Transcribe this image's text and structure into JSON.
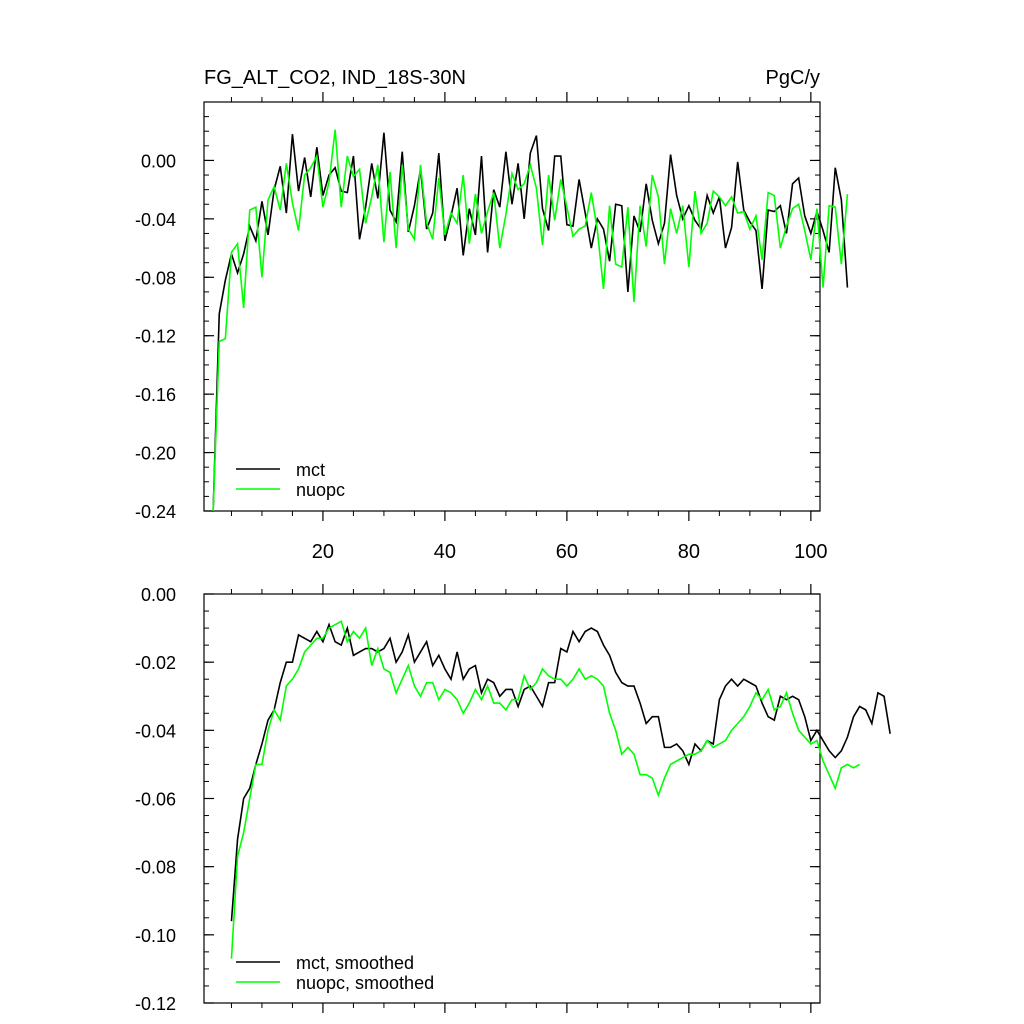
{
  "header": {
    "title_left": "FG_ALT_CO2, IND_18S-30N",
    "title_right": "PgC/y"
  },
  "chart_data": [
    {
      "type": "line",
      "xlim": [
        0.5,
        101.5
      ],
      "ylim": [
        -0.24,
        0.04
      ],
      "x_tick_labels": [
        "20",
        "40",
        "60",
        "80",
        "100"
      ],
      "x_tick_values": [
        20,
        40,
        60,
        80,
        100
      ],
      "y_tick_labels": [
        "0.00",
        "-0.04",
        "-0.08",
        "-0.12",
        "-0.16",
        "-0.20",
        "-0.24"
      ],
      "y_tick_values": [
        0.0,
        -0.04,
        -0.08,
        -0.12,
        -0.16,
        -0.2,
        -0.24
      ],
      "legend_position": "bottom-left",
      "series": [
        {
          "name": "mct",
          "color": "#000000",
          "x_start": 2,
          "values": [
            -0.24,
            -0.105,
            -0.082,
            -0.064,
            -0.077,
            -0.064,
            -0.045,
            -0.055,
            -0.028,
            -0.051,
            -0.02,
            -0.004,
            -0.036,
            0.018,
            -0.021,
            0.002,
            -0.025,
            0.009,
            -0.024,
            -0.01,
            -0.005,
            -0.021,
            -0.022,
            0.003,
            -0.054,
            -0.032,
            -0.002,
            -0.026,
            0.019,
            -0.034,
            -0.042,
            0.006,
            -0.049,
            -0.031,
            -0.006,
            -0.047,
            -0.036,
            0.005,
            -0.055,
            -0.038,
            -0.019,
            -0.065,
            -0.033,
            -0.051,
            0.003,
            -0.063,
            -0.02,
            -0.032,
            0.006,
            -0.03,
            -0.002,
            -0.04,
            0.005,
            0.017,
            -0.033,
            -0.048,
            0.003,
            0.003,
            -0.044,
            -0.045,
            -0.013,
            -0.036,
            -0.06,
            -0.04,
            -0.047,
            -0.069,
            -0.03,
            -0.031,
            -0.09,
            -0.038,
            -0.049,
            -0.016,
            -0.041,
            -0.057,
            -0.043,
            0.004,
            -0.024,
            -0.04,
            -0.031,
            -0.041,
            -0.047,
            -0.024,
            -0.036,
            -0.025,
            -0.06,
            -0.046,
            -0.001,
            -0.034,
            -0.042,
            -0.048,
            -0.088,
            -0.034,
            -0.035,
            -0.031,
            -0.05,
            -0.016,
            -0.012,
            -0.038,
            -0.05,
            -0.035,
            -0.048,
            -0.063,
            -0.005,
            -0.027,
            -0.087
          ]
        },
        {
          "name": "nuopc",
          "color": "#00ff00",
          "x_start": 2,
          "values": [
            -0.24,
            -0.124,
            -0.122,
            -0.063,
            -0.057,
            -0.101,
            -0.034,
            -0.032,
            -0.08,
            -0.027,
            -0.018,
            -0.034,
            -0.002,
            -0.029,
            -0.048,
            -0.01,
            -0.005,
            0.003,
            -0.032,
            -0.015,
            0.021,
            -0.032,
            0.003,
            -0.011,
            -0.006,
            -0.043,
            -0.025,
            -0.003,
            -0.056,
            -0.008,
            -0.06,
            -0.003,
            -0.047,
            -0.054,
            -0.003,
            -0.043,
            -0.054,
            -0.012,
            -0.051,
            -0.036,
            -0.043,
            -0.01,
            -0.057,
            -0.023,
            -0.05,
            -0.035,
            -0.022,
            -0.06,
            -0.037,
            -0.009,
            -0.02,
            -0.016,
            -0.003,
            -0.019,
            -0.058,
            -0.01,
            -0.041,
            -0.013,
            -0.032,
            -0.052,
            -0.047,
            -0.045,
            -0.022,
            -0.048,
            -0.088,
            -0.031,
            -0.071,
            -0.073,
            -0.032,
            -0.097,
            -0.031,
            -0.059,
            -0.01,
            -0.025,
            -0.071,
            -0.033,
            -0.05,
            -0.031,
            -0.073,
            -0.021,
            -0.05,
            -0.043,
            -0.021,
            -0.025,
            -0.031,
            -0.025,
            -0.036,
            -0.035,
            -0.047,
            -0.038,
            -0.068,
            -0.022,
            -0.024,
            -0.06,
            -0.045,
            -0.033,
            -0.03,
            -0.048,
            -0.068,
            -0.033,
            -0.087,
            -0.031,
            -0.032,
            -0.071,
            -0.023
          ]
        }
      ]
    },
    {
      "type": "line",
      "xlim": [
        0.5,
        101.5
      ],
      "ylim": [
        -0.12,
        0.0
      ],
      "x_tick_values": [
        20,
        40,
        60,
        80,
        100
      ],
      "y_tick_labels": [
        "0.00",
        "-0.02",
        "-0.04",
        "-0.06",
        "-0.08",
        "-0.10",
        "-0.12"
      ],
      "y_tick_values": [
        0.0,
        -0.02,
        -0.04,
        -0.06,
        -0.08,
        -0.1,
        -0.12
      ],
      "legend_position": "bottom-left",
      "series": [
        {
          "name": "mct, smoothed",
          "color": "#000000",
          "x_start": 5,
          "values": [
            -0.096,
            -0.072,
            -0.06,
            -0.057,
            -0.05,
            -0.044,
            -0.037,
            -0.034,
            -0.026,
            -0.02,
            -0.02,
            -0.012,
            -0.013,
            -0.014,
            -0.011,
            -0.014,
            -0.009,
            -0.014,
            -0.015,
            -0.01,
            -0.018,
            -0.017,
            -0.016,
            -0.016,
            -0.017,
            -0.016,
            -0.013,
            -0.02,
            -0.017,
            -0.012,
            -0.02,
            -0.017,
            -0.014,
            -0.021,
            -0.018,
            -0.022,
            -0.025,
            -0.017,
            -0.025,
            -0.022,
            -0.021,
            -0.029,
            -0.025,
            -0.026,
            -0.03,
            -0.028,
            -0.028,
            -0.033,
            -0.028,
            -0.027,
            -0.03,
            -0.033,
            -0.026,
            -0.026,
            -0.016,
            -0.017,
            -0.011,
            -0.014,
            -0.011,
            -0.01,
            -0.011,
            -0.015,
            -0.018,
            -0.023,
            -0.026,
            -0.027,
            -0.027,
            -0.032,
            -0.038,
            -0.036,
            -0.036,
            -0.045,
            -0.045,
            -0.044,
            -0.046,
            -0.05,
            -0.044,
            -0.046,
            -0.043,
            -0.044,
            -0.031,
            -0.027,
            -0.025,
            -0.027,
            -0.025,
            -0.026,
            -0.027,
            -0.032,
            -0.036,
            -0.037,
            -0.03,
            -0.031,
            -0.03,
            -0.031,
            -0.036,
            -0.043,
            -0.04,
            -0.043,
            -0.046,
            -0.048,
            -0.046,
            -0.042,
            -0.036,
            -0.033,
            -0.034,
            -0.038,
            -0.029,
            -0.03,
            -0.041
          ]
        },
        {
          "name": "nuopc, smoothed",
          "color": "#00ff00",
          "x_start": 5,
          "values": [
            -0.107,
            -0.077,
            -0.07,
            -0.06,
            -0.05,
            -0.05,
            -0.04,
            -0.034,
            -0.037,
            -0.027,
            -0.025,
            -0.022,
            -0.017,
            -0.015,
            -0.013,
            -0.013,
            -0.01,
            -0.009,
            -0.008,
            -0.014,
            -0.011,
            -0.013,
            -0.01,
            -0.021,
            -0.016,
            -0.022,
            -0.023,
            -0.029,
            -0.025,
            -0.021,
            -0.027,
            -0.03,
            -0.026,
            -0.026,
            -0.031,
            -0.028,
            -0.029,
            -0.031,
            -0.035,
            -0.032,
            -0.028,
            -0.031,
            -0.027,
            -0.032,
            -0.032,
            -0.034,
            -0.031,
            -0.031,
            -0.024,
            -0.028,
            -0.026,
            -0.022,
            -0.024,
            -0.025,
            -0.025,
            -0.027,
            -0.025,
            -0.022,
            -0.025,
            -0.024,
            -0.025,
            -0.027,
            -0.035,
            -0.04,
            -0.047,
            -0.045,
            -0.047,
            -0.053,
            -0.053,
            -0.054,
            -0.059,
            -0.054,
            -0.05,
            -0.049,
            -0.048,
            -0.047,
            -0.047,
            -0.046,
            -0.043,
            -0.045,
            -0.044,
            -0.043,
            -0.04,
            -0.038,
            -0.036,
            -0.033,
            -0.029,
            -0.031,
            -0.028,
            -0.034,
            -0.033,
            -0.029,
            -0.035,
            -0.04,
            -0.042,
            -0.044,
            -0.043,
            -0.049,
            -0.053,
            -0.057,
            -0.051,
            -0.05,
            -0.051,
            -0.05
          ]
        }
      ]
    }
  ]
}
